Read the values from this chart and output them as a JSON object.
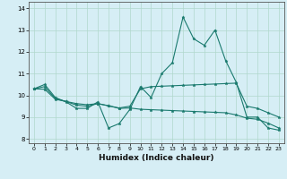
{
  "title": "",
  "xlabel": "Humidex (Indice chaleur)",
  "xlim": [
    -0.5,
    23.5
  ],
  "ylim": [
    7.8,
    14.3
  ],
  "yticks": [
    8,
    9,
    10,
    11,
    12,
    13,
    14
  ],
  "xticks": [
    0,
    1,
    2,
    3,
    4,
    5,
    6,
    7,
    8,
    9,
    10,
    11,
    12,
    13,
    14,
    15,
    16,
    17,
    18,
    19,
    20,
    21,
    22,
    23
  ],
  "bg_color": "#d6eef5",
  "line_color": "#1a7a6e",
  "grid_color": "#b0d8cc",
  "series": [
    [
      10.3,
      10.5,
      9.9,
      9.7,
      9.4,
      9.4,
      9.7,
      8.5,
      8.7,
      9.35,
      10.4,
      9.9,
      11.0,
      11.5,
      13.6,
      12.6,
      12.3,
      13.0,
      11.6,
      10.6,
      9.0,
      9.0,
      8.5,
      8.4
    ],
    [
      10.3,
      10.4,
      9.85,
      9.72,
      9.55,
      9.5,
      9.62,
      9.52,
      9.42,
      9.5,
      10.3,
      10.4,
      10.42,
      10.44,
      10.46,
      10.48,
      10.5,
      10.52,
      10.54,
      10.56,
      9.5,
      9.4,
      9.2,
      9.0
    ],
    [
      10.3,
      10.28,
      9.82,
      9.72,
      9.62,
      9.57,
      9.62,
      9.52,
      9.4,
      9.42,
      9.36,
      9.34,
      9.32,
      9.3,
      9.28,
      9.26,
      9.24,
      9.22,
      9.2,
      9.1,
      8.95,
      8.9,
      8.72,
      8.5
    ]
  ]
}
